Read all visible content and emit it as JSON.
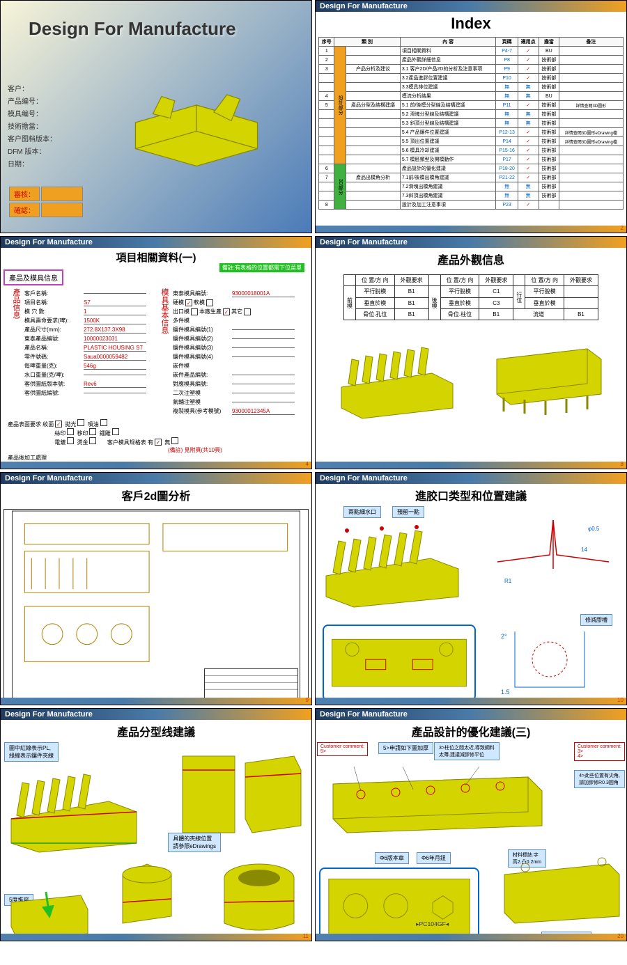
{
  "header_text": "Design For Manufacture",
  "s1": {
    "title": "Design For Manufacture",
    "fields": [
      "客户：",
      "产品编号：",
      "模具编号：",
      "技術擔當：",
      "客户图档版本：",
      "DFM 版本：",
      "日期："
    ],
    "approve": "審核：",
    "confirm": "確認："
  },
  "s2": {
    "title": "Index",
    "headers": [
      "序号",
      "類 別",
      "內 容",
      "頁碼",
      "適用点",
      "擔當",
      "备注"
    ],
    "cat1": "設計部分",
    "cat2": "3D部分",
    "rows": [
      [
        "1",
        "",
        "項目相關資料",
        "P4-7",
        "✓",
        "BU",
        ""
      ],
      [
        "2",
        "",
        "產品外觀詳細信息",
        "P8",
        "✓",
        "技術部",
        ""
      ],
      [
        "3",
        "产品分析及建议",
        "3.1 客户2D/产品2D的分析及注意事项",
        "P9",
        "✓",
        "技術部",
        ""
      ],
      [
        "",
        "",
        "3.2產品進膠位置建議",
        "P10",
        "✓",
        "技術部",
        ""
      ],
      [
        "",
        "",
        "3.3模具排位建議",
        "無",
        "無",
        "技術部",
        ""
      ],
      [
        "4",
        "",
        "模流分析結果",
        "無",
        "無",
        "BU",
        ""
      ],
      [
        "5",
        "產品分型及結構建議",
        "5.1 前/後模分型線及結構建議",
        "P11",
        "✓",
        "技術部",
        "詳情查閱3D圖形"
      ],
      [
        "",
        "",
        "5.2 滑塊分型線及結構建議",
        "無",
        "無",
        "技術部",
        ""
      ],
      [
        "",
        "",
        "5.3 斜頂分型線及結構建議",
        "無",
        "無",
        "技術部",
        ""
      ],
      [
        "",
        "",
        "5.4 产品鑲件位置建議",
        "P12-13",
        "✓",
        "技術部",
        "詳情查閱3D圖形eDrawing檔"
      ],
      [
        "",
        "",
        "5.5 頂出位置建議",
        "P14",
        "✓",
        "技術部",
        "詳情查閱3D圖形eDrawing檔"
      ],
      [
        "",
        "",
        "5.6 模具冷却建議",
        "P15-16",
        "✓",
        "技術部",
        ""
      ],
      [
        "",
        "",
        "5.7 模胚類型及開模動作",
        "P17",
        "✓",
        "技術部",
        ""
      ],
      [
        "6",
        "",
        "產品設計的優化建議",
        "P18-20",
        "✓",
        "技術部",
        ""
      ],
      [
        "7",
        "產品出模角分析",
        "7.1前/後模出模角建議",
        "P21-22",
        "✓",
        "技術部",
        ""
      ],
      [
        "",
        "",
        "7.2滑塊出模角建議",
        "無",
        "無",
        "技術部",
        ""
      ],
      [
        "",
        "",
        "7.3斜頂出模角建議",
        "無",
        "無",
        "技術部",
        ""
      ],
      [
        "8",
        "",
        "設計及加工注意事項",
        "P23",
        "✓",
        "",
        ""
      ]
    ]
  },
  "s3": {
    "title": "項目相關資料(一)",
    "box": "產品及模具信息",
    "green": "備註:有表格的位置都需下位菜單",
    "side1": "產品信息",
    "side2": "模具基本信息",
    "fields_left": [
      {
        "l": "客戶名稱:",
        "v": ""
      },
      {
        "l": "項目名稱:",
        "v": "S7"
      },
      {
        "l": "模 穴 數:",
        "v": "1"
      },
      {
        "l": "模具壽命要求(啤):",
        "v": "1500K"
      },
      {
        "l": "產品尺寸(mm):",
        "v": "272.8X137.3X98"
      },
      {
        "l": "東泰產品編號:",
        "v": "10000023031"
      },
      {
        "l": "產品名稱:",
        "v": "PLASTIC HOUSING S7"
      },
      {
        "l": "零件號碼:",
        "v": "Saua0000059482"
      },
      {
        "l": "每啤重量(克):",
        "v": "546g"
      },
      {
        "l": "水口重量(克/啤):",
        "v": ""
      },
      {
        "l": "客供圖紙版本號:",
        "v": "Rev6"
      },
      {
        "l": "客供圖紙編號:",
        "v": ""
      }
    ],
    "fields_right": [
      {
        "l": "東泰模具編號:",
        "v": "93000018001A"
      },
      {
        "l": "硬模",
        "cb": true,
        "l2": "軟模"
      },
      {
        "l": "出口模",
        "l2": "本廠生產",
        "cb2": true,
        "l3": "其它"
      },
      {
        "l": "鑲件模具編號(1)",
        "v": ""
      },
      {
        "l": "鑲件模具編號(2)",
        "v": ""
      },
      {
        "l": "鑲件模具編號(3)",
        "v": ""
      },
      {
        "l": "鑲件模具編號(4)",
        "v": ""
      },
      {
        "l": "嵌件產品編號:",
        "v": ""
      },
      {
        "l": "對應模具編號:",
        "v": ""
      },
      {
        "l": "二次注塑模",
        "v": ""
      },
      {
        "l": "氣輔注塑模",
        "v": ""
      },
      {
        "l": "複製模具(参考模號)",
        "v": "93000012345A"
      }
    ],
    "multi": "多件模",
    "insert": "嵌件模",
    "surface": "產品表面要求",
    "surf_opts": [
      "紋面",
      "拋光",
      "噴油",
      "絲印",
      "移印",
      "鐳雕",
      "電鍍",
      "燙金"
    ],
    "spec": "客户模具规格表",
    "spec_opts": [
      "有",
      "無"
    ],
    "note": "(備註) 見附頁(共10頁)",
    "post": "產品後加工處理"
  },
  "s4": {
    "title": "產品外觀信息",
    "headers": [
      "位 置/方 向",
      "外觀要求"
    ],
    "front": "前模",
    "back": "後模",
    "walk": "行位",
    "rows_f": [
      [
        "平行脫模",
        "B1"
      ],
      [
        "垂直於模",
        "B1"
      ],
      [
        "骨位.孔位",
        "B1"
      ]
    ],
    "rows_b": [
      [
        "平行脫模",
        "C1"
      ],
      [
        "垂直於模",
        "C3"
      ],
      [
        "骨位.柱位",
        "B1"
      ]
    ],
    "rows_w": [
      [
        "平行脫模",
        ""
      ],
      [
        "垂直於模",
        ""
      ],
      [
        "流道",
        "B1"
      ]
    ]
  },
  "s5": {
    "title": "客戶2d圖分析"
  },
  "s6": {
    "title": "進胶口类型和位置建議",
    "c1": "兩點細水口",
    "c2": "預留一點",
    "c3": "修減膠槽"
  },
  "s7": {
    "title": "產品分型线建議",
    "a1": "圖中紅線表示PL,\n綠線表示鑲件夾線",
    "a2": "具體的夾線位置\n請參照eDrawings",
    "a3": "5度推穿"
  },
  "s8": {
    "title": "產品設計的優化建議(三)",
    "a1": "Customer comment:\n5>",
    "a2": "5>申請如下圖加厚",
    "a3": "3>柱位之間太近,導致鋼料\n太薄,建議減膠修平位",
    "a4": "Customer comment:\n3>\n4>",
    "a5": "4>此些位置有尖角,\n請加膠修R0.3圓角",
    "a6": "Φ6版本章",
    "a7": "Φ6年月鈕",
    "a8": "材料標誌.字\n高2.凸0.2mm",
    "a9": "PC104GF",
    "a10": "循環標誌.凸0.2mm"
  },
  "page_nums": [
    "",
    "2",
    "4",
    "8",
    "9",
    "10",
    "11",
    "20"
  ]
}
